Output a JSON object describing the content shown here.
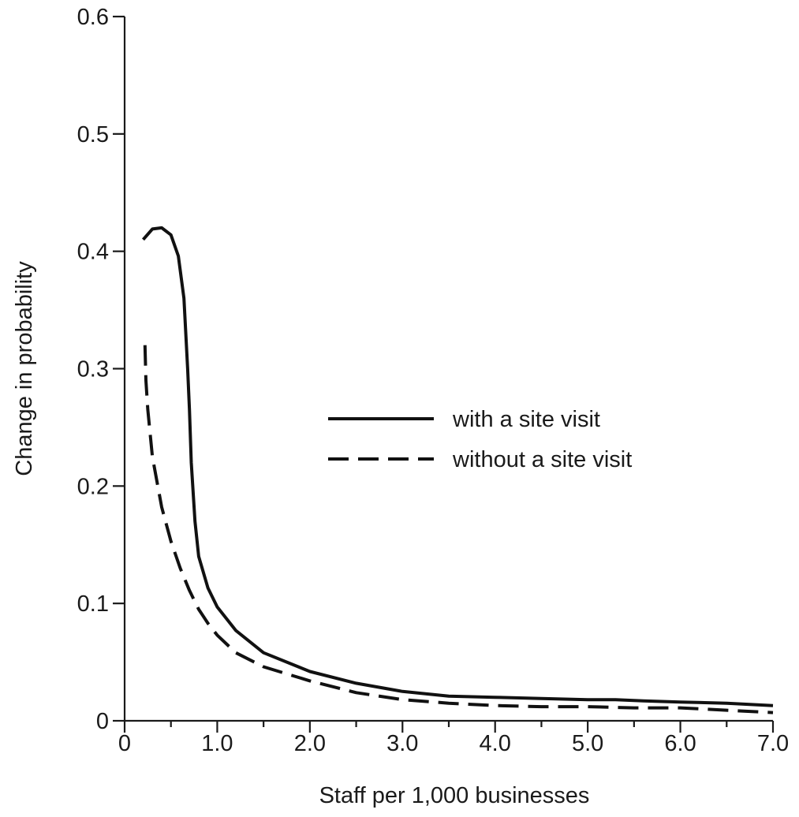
{
  "chart_data": {
    "type": "line",
    "title": "",
    "xlabel": "Staff per 1,000 businesses",
    "ylabel": "Change in probability",
    "xlim": [
      0,
      7.0
    ],
    "ylim": [
      0,
      0.6
    ],
    "x_ticks": [
      0,
      0.5,
      1.0,
      1.5,
      2.0,
      2.5,
      3.0,
      3.5,
      4.0,
      4.5,
      5.0,
      5.5,
      6.0,
      6.5,
      7.0
    ],
    "x_tick_labels": [
      {
        "value": 0,
        "label": "0"
      },
      {
        "value": 1.0,
        "label": "1.0"
      },
      {
        "value": 2.0,
        "label": "2.0"
      },
      {
        "value": 3.0,
        "label": "3.0"
      },
      {
        "value": 4.0,
        "label": "4.0"
      },
      {
        "value": 5.0,
        "label": "5.0"
      },
      {
        "value": 6.0,
        "label": "6.0"
      },
      {
        "value": 7.0,
        "label": "7.0"
      }
    ],
    "y_tick_labels": [
      {
        "value": 0,
        "label": "0"
      },
      {
        "value": 0.1,
        "label": "0.1"
      },
      {
        "value": 0.2,
        "label": "0.2"
      },
      {
        "value": 0.3,
        "label": "0.3"
      },
      {
        "value": 0.4,
        "label": "0.4"
      },
      {
        "value": 0.5,
        "label": "0.5"
      },
      {
        "value": 0.6,
        "label": "0.6"
      }
    ],
    "grid": false,
    "legend_position": "center-right",
    "series": [
      {
        "name": "with a site visit",
        "style": "solid",
        "color": "#111111",
        "x": [
          0.2,
          0.3,
          0.4,
          0.5,
          0.58,
          0.64,
          0.68,
          0.7,
          0.72,
          0.76,
          0.8,
          0.9,
          1.0,
          1.2,
          1.5,
          2.0,
          2.5,
          3.0,
          3.5,
          4.0,
          4.5,
          5.0,
          5.3,
          5.6,
          6.0,
          6.5,
          7.0
        ],
        "y": [
          0.41,
          0.419,
          0.42,
          0.414,
          0.396,
          0.36,
          0.3,
          0.265,
          0.22,
          0.17,
          0.14,
          0.113,
          0.097,
          0.077,
          0.058,
          0.042,
          0.032,
          0.025,
          0.021,
          0.02,
          0.019,
          0.018,
          0.018,
          0.017,
          0.016,
          0.015,
          0.013
        ]
      },
      {
        "name": "without a site visit",
        "style": "dashed",
        "color": "#111111",
        "x": [
          0.22,
          0.23,
          0.25,
          0.3,
          0.4,
          0.5,
          0.6,
          0.7,
          0.8,
          0.9,
          1.0,
          1.2,
          1.5,
          2.0,
          2.5,
          3.0,
          3.5,
          4.0,
          4.5,
          5.0,
          5.5,
          6.0,
          6.5,
          7.0
        ],
        "y": [
          0.32,
          0.29,
          0.265,
          0.225,
          0.182,
          0.153,
          0.13,
          0.111,
          0.095,
          0.083,
          0.073,
          0.058,
          0.046,
          0.034,
          0.024,
          0.018,
          0.015,
          0.013,
          0.012,
          0.012,
          0.011,
          0.011,
          0.009,
          0.007
        ]
      }
    ]
  }
}
